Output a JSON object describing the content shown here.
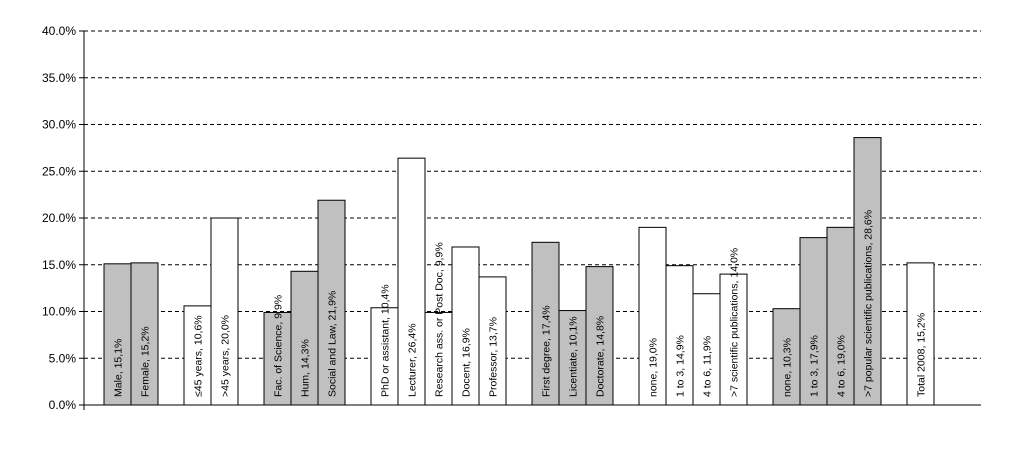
{
  "chart_data": {
    "type": "bar",
    "ylim": [
      0,
      40
    ],
    "y_ticks": [
      "0.0%",
      "5.0%",
      "10.0%",
      "15.0%",
      "20.0%",
      "25.0%",
      "30.0%",
      "35.0%",
      "40.0%"
    ],
    "grid": "horizontal dashed",
    "colors": {
      "gray": "#c0c0c0",
      "white": "#ffffff"
    },
    "bars": [
      {
        "label": "Male, 15,1%",
        "value": 15.1,
        "color": "gray"
      },
      {
        "label": "Female, 15,2%",
        "value": 15.2,
        "color": "gray"
      },
      {
        "label": "≤45 years, 10,6%",
        "value": 10.6,
        "color": "white"
      },
      {
        "label": ">45 years, 20,0%",
        "value": 20.0,
        "color": "white"
      },
      {
        "label": "Fac. of Science, 9,9%",
        "value": 9.9,
        "color": "gray"
      },
      {
        "label": "Hum, 14,3%",
        "value": 14.3,
        "color": "gray"
      },
      {
        "label": "Social and Law, 21,9%",
        "value": 21.9,
        "color": "gray"
      },
      {
        "label": "PhD or assistant, 10,4%",
        "value": 10.4,
        "color": "white"
      },
      {
        "label": "Lecturer, 26,4%",
        "value": 26.4,
        "color": "white"
      },
      {
        "label": "Research ass. or Post Doc, 9,9%",
        "value": 9.9,
        "color": "white"
      },
      {
        "label": "Docent, 16,9%",
        "value": 16.9,
        "color": "white"
      },
      {
        "label": "Professor, 13,7%",
        "value": 13.7,
        "color": "white"
      },
      {
        "label": "First degree, 17,4%",
        "value": 17.4,
        "color": "gray"
      },
      {
        "label": "Licentiate, 10,1%",
        "value": 10.1,
        "color": "gray"
      },
      {
        "label": "Doctorate, 14,8%",
        "value": 14.8,
        "color": "gray"
      },
      {
        "label": "none, 19,0%",
        "value": 19.0,
        "color": "white"
      },
      {
        "label": "1 to 3, 14,9%",
        "value": 14.9,
        "color": "white"
      },
      {
        "label": "4 to 6, 11,9%",
        "value": 11.9,
        "color": "white"
      },
      {
        "label": ">7 scientific publications, 14,0%",
        "value": 14.0,
        "color": "white"
      },
      {
        "label": "none, 10,3%",
        "value": 10.3,
        "color": "gray"
      },
      {
        "label": "1 to 3, 17,9%",
        "value": 17.9,
        "color": "gray"
      },
      {
        "label": "4 to 6, 19,0%",
        "value": 19.0,
        "color": "gray"
      },
      {
        "label": ">7 popular scientific publications, 28,6%",
        "value": 28.6,
        "color": "gray"
      },
      {
        "label": "Total 2008, 15,2%",
        "value": 15.2,
        "color": "white"
      }
    ]
  }
}
